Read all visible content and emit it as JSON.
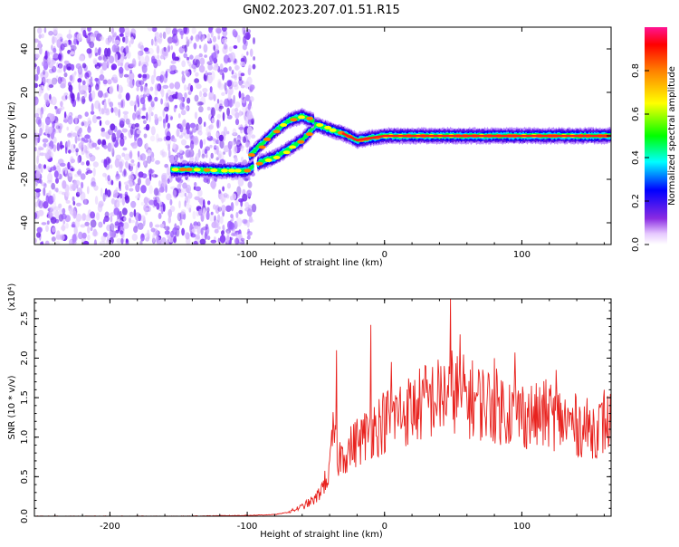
{
  "title": "GN02.2023.207.01.51.R15",
  "chart_data": [
    {
      "type": "heatmap",
      "xlabel": "Height of straight line (km)",
      "ylabel": "Frequency (Hz)",
      "xlim": [
        -255,
        165
      ],
      "ylim": [
        -50,
        50
      ],
      "xticks": [
        -200,
        -100,
        0,
        100
      ],
      "yticks": [
        -40,
        -20,
        0,
        20,
        40
      ],
      "colorbar": {
        "label": "Normalized spectral amplitude",
        "range": [
          0.0,
          1.0
        ],
        "ticks": [
          "0.0",
          "0.2",
          "0.4",
          "0.6",
          "0.8"
        ],
        "colormap": [
          "#ffffff",
          "#d9b3ff",
          "#8a2be2",
          "#0000ff",
          "#00ffff",
          "#00ff00",
          "#ffff00",
          "#ff8000",
          "#ff0000",
          "#ff1493"
        ]
      },
      "ridge": [
        {
          "x": -155,
          "y": -15.5
        },
        {
          "x": -140,
          "y": -15.5
        },
        {
          "x": -120,
          "y": -16
        },
        {
          "x": -100,
          "y": -16
        },
        {
          "x": -90,
          "y": -12
        },
        {
          "x": -80,
          "y": -10
        },
        {
          "x": -70,
          "y": -6
        },
        {
          "x": -60,
          "y": -2
        },
        {
          "x": -50,
          "y": 5
        },
        {
          "x": -40,
          "y": 3
        },
        {
          "x": -30,
          "y": 1
        },
        {
          "x": -20,
          "y": -2
        },
        {
          "x": -10,
          "y": -1
        },
        {
          "x": 0,
          "y": 0
        },
        {
          "x": 30,
          "y": 0
        },
        {
          "x": 60,
          "y": 0
        },
        {
          "x": 100,
          "y": 0
        },
        {
          "x": 130,
          "y": 0
        },
        {
          "x": 165,
          "y": 0
        }
      ],
      "upper_branch": [
        {
          "x": -100,
          "y": -10
        },
        {
          "x": -90,
          "y": -4
        },
        {
          "x": -80,
          "y": 2
        },
        {
          "x": -70,
          "y": 7
        },
        {
          "x": -60,
          "y": 9
        },
        {
          "x": -52,
          "y": 7
        }
      ],
      "grid": false
    },
    {
      "type": "line",
      "xlabel": "Height of straight line (km)",
      "ylabel": "SNR (10 * v/v)",
      "yscale_label": "(x10⁴)",
      "xlim": [
        -255,
        165
      ],
      "ylim": [
        0,
        2.75
      ],
      "xticks": [
        -200,
        -100,
        0,
        100
      ],
      "yticks": [
        0.0,
        0.5,
        1.0,
        1.5,
        2.0,
        2.5
      ],
      "series": [
        {
          "color": "#e8221e",
          "x": [
            -255,
            -200,
            -150,
            -100,
            -80,
            -70,
            -60,
            -50,
            -45,
            -40,
            -37,
            -35,
            -30,
            -25,
            -20,
            -15,
            -10,
            -5,
            0,
            10,
            20,
            30,
            40,
            50,
            60,
            70,
            80,
            90,
            100,
            110,
            120,
            130,
            140,
            150,
            160,
            165
          ],
          "y": [
            0.0,
            0.0,
            0.0,
            0.01,
            0.02,
            0.05,
            0.12,
            0.22,
            0.38,
            0.55,
            1.15,
            0.7,
            0.8,
            0.85,
            0.95,
            1.0,
            1.1,
            1.15,
            1.2,
            1.3,
            1.35,
            1.45,
            1.5,
            1.6,
            1.5,
            1.45,
            1.4,
            1.35,
            1.3,
            1.25,
            1.3,
            1.2,
            1.15,
            1.1,
            1.15,
            1.2
          ]
        }
      ],
      "spikes": [
        {
          "x": -35,
          "y": 2.1
        },
        {
          "x": -10,
          "y": 2.42
        },
        {
          "x": 5,
          "y": 1.95
        },
        {
          "x": 30,
          "y": 1.9
        },
        {
          "x": 48,
          "y": 2.75
        },
        {
          "x": 55,
          "y": 2.3
        },
        {
          "x": 80,
          "y": 2.0
        },
        {
          "x": 95,
          "y": 2.07
        },
        {
          "x": 125,
          "y": 1.85
        },
        {
          "x": 160,
          "y": 1.6
        }
      ],
      "grid": false
    }
  ]
}
